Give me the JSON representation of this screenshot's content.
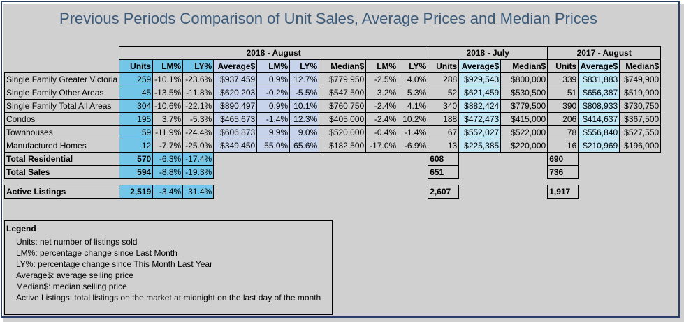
{
  "title": "Previous Periods Comparison of Unit Sales, Average Prices and Median Prices",
  "periods": {
    "current": "2018 - August",
    "last_month": "2018 - July",
    "last_year": "2017 - August"
  },
  "headers": {
    "current": [
      "Units",
      "LM%",
      "LY%",
      "Average$",
      "LM%",
      "LY%",
      "Median$",
      "LM%",
      "LY%"
    ],
    "last_month": [
      "Units",
      "Average$",
      "Median$"
    ],
    "last_year": [
      "Units",
      "Average$",
      "Median$"
    ]
  },
  "rows": [
    {
      "category": "Single Family Greater Victoria",
      "current": [
        "259",
        "-10.1%",
        "-23.6%",
        "$937,459",
        "0.9%",
        "12.7%",
        "$779,950",
        "-2.5%",
        "4.0%"
      ],
      "last_month": [
        "288",
        "$929,543",
        "$800,000"
      ],
      "last_year": [
        "339",
        "$831,883",
        "$749,900"
      ]
    },
    {
      "category": "Single Family Other Areas",
      "current": [
        "45",
        "-13.5%",
        "-11.8%",
        "$620,203",
        "-0.2%",
        "-5.5%",
        "$547,500",
        "3.2%",
        "5.3%"
      ],
      "last_month": [
        "52",
        "$621,459",
        "$530,500"
      ],
      "last_year": [
        "51",
        "$656,387",
        "$519,900"
      ]
    },
    {
      "category": "Single Family Total All Areas",
      "current": [
        "304",
        "-10.6%",
        "-22.1%",
        "$890,497",
        "0.9%",
        "10.1%",
        "$760,750",
        "-2.4%",
        "4.1%"
      ],
      "last_month": [
        "340",
        "$882,424",
        "$779,500"
      ],
      "last_year": [
        "390",
        "$808,933",
        "$730,750"
      ]
    },
    {
      "category": "Condos",
      "current": [
        "195",
        "3.7%",
        "-5.3%",
        "$465,673",
        "-1.4%",
        "12.3%",
        "$405,000",
        "-2.4%",
        "10.2%"
      ],
      "last_month": [
        "188",
        "$472,473",
        "$415,000"
      ],
      "last_year": [
        "206",
        "$414,637",
        "$367,500"
      ]
    },
    {
      "category": "Townhouses",
      "current": [
        "59",
        "-11.9%",
        "-24.4%",
        "$606,873",
        "9.9%",
        "9.0%",
        "$520,000",
        "-0.4%",
        "-1.4%"
      ],
      "last_month": [
        "67",
        "$552,027",
        "$522,000"
      ],
      "last_year": [
        "78",
        "$556,840",
        "$527,550"
      ]
    },
    {
      "category": "Manufactured Homes",
      "current": [
        "12",
        "-7.7%",
        "-25.0%",
        "$349,450",
        "55.0%",
        "65.6%",
        "$182,500",
        "-17.0%",
        "-6.9%"
      ],
      "last_month": [
        "13",
        "$225,385",
        "$220,000"
      ],
      "last_year": [
        "16",
        "$210,969",
        "$196,000"
      ]
    }
  ],
  "totals": [
    {
      "category": "Total Residential",
      "current": [
        "570",
        "-6.3%",
        "-17.4%"
      ],
      "last_month": "608",
      "last_year": "690"
    },
    {
      "category": "Total Sales",
      "current": [
        "594",
        "-8.8%",
        "-19.3%"
      ],
      "last_month": "651",
      "last_year": "736"
    }
  ],
  "active_listings": {
    "category": "Active Listings",
    "current": [
      "2,519",
      "-3.4%",
      "31.4%"
    ],
    "last_month": "2,607",
    "last_year": "1,917"
  },
  "legend": {
    "title": "Legend",
    "items": [
      "Units: net number of listings sold",
      "LM%: percentage change since Last Month",
      "LY%: percentage change since This Month Last Year",
      "Average$: average selling price",
      "Median$: median selling price",
      "Active Listings: total listings on the market at midnight on the last day of the month"
    ]
  },
  "colors": {
    "units_fill": "#74c6e8",
    "average_fill": "#c6d3ea",
    "average_fill_alt": "#c2e6f4",
    "title_text": "#3b5a7a",
    "frame": "#2a3d6b"
  }
}
